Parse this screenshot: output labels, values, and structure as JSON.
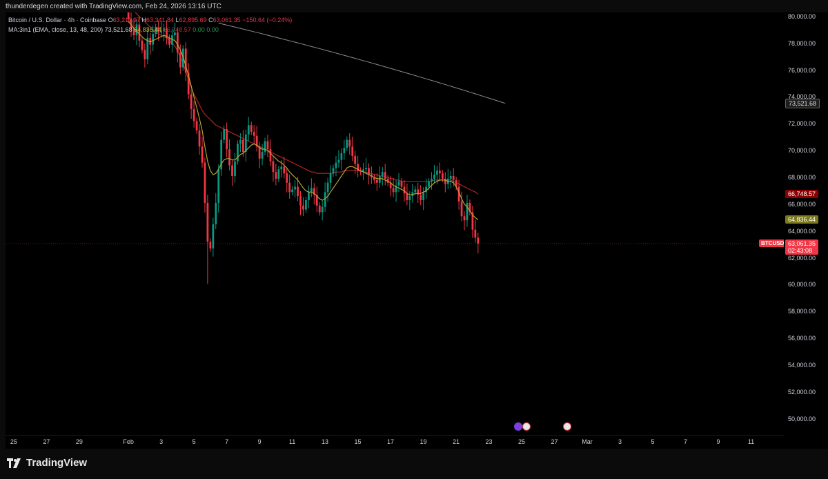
{
  "header": {
    "text": "thunderdegen created with TradingView.com, Feb 24, 2026 13:16 UTC"
  },
  "legend": {
    "symbol": "Bitcoin / U.S. Dollar · 4h · Coinbase",
    "open_label": "O",
    "open": "63,211.97",
    "high_label": "H",
    "high": "63,341.84",
    "low_label": "L",
    "low": "62,895.69",
    "close_label": "C",
    "close": "63,061.35",
    "change": "−150.64 (−0.24%)",
    "ma_name": "MA:3in1 (EMA, close, 13, 48, 200)",
    "ma_vals": [
      "73,521.68",
      "64,836.44",
      "66,748.57",
      "0.00",
      "0.00"
    ]
  },
  "price_badges": {
    "ema200": "73,521.68",
    "ema48": "66,748.57",
    "ema13": "64,836.44",
    "symbol": "BTCUSD",
    "last": "63,061.35",
    "countdown": "02:43:08"
  },
  "colors": {
    "up": "#089981",
    "down": "#f23645",
    "ema13": "#b5a532",
    "ema48": "#b22222",
    "ema200": "#8c8c8c",
    "last": "#f23645"
  },
  "footer": {
    "brand": "TradingView"
  },
  "chart_data": {
    "type": "candlestick",
    "interval": "4h",
    "y_ticks": [
      50000,
      52000,
      54000,
      56000,
      58000,
      60000,
      62000,
      64000,
      66000,
      68000,
      70000,
      72000,
      74000,
      76000,
      78000,
      80000
    ],
    "y_tick_labels": [
      "50,000.00",
      "52,000.00",
      "54,000.00",
      "56,000.00",
      "58,000.00",
      "60,000.00",
      "62,000.00",
      "64,000.00",
      "66,000.00",
      "68,000.00",
      "70,000.00",
      "72,000.00",
      "74,000.00",
      "76,000.00",
      "78,000.00",
      "80,000.00"
    ],
    "ylim": [
      48800,
      80300
    ],
    "x_labels": [
      "25",
      "27",
      "29",
      "Feb",
      "3",
      "5",
      "7",
      "9",
      "11",
      "13",
      "15",
      "17",
      "19",
      "21",
      "23",
      "25",
      "27",
      "Mar",
      "3",
      "5",
      "7",
      "9",
      "11"
    ],
    "x_label_days": [
      -7,
      -5,
      -3,
      0,
      2,
      4,
      6,
      8,
      10,
      12,
      14,
      16,
      18,
      20,
      22,
      24,
      26,
      28,
      30,
      32,
      34,
      36,
      38
    ],
    "xlim_days": [
      -7.5,
      40
    ],
    "candles_start_day": 0,
    "candles_step_day": 0.1667,
    "closes": [
      79800,
      79100,
      78600,
      79400,
      78200,
      77500,
      76800,
      78400,
      77900,
      78700,
      79200,
      78800,
      78900,
      79100,
      78400,
      77900,
      78600,
      78800,
      77300,
      76200,
      77600,
      75800,
      74200,
      73100,
      72200,
      71500,
      70300,
      69100,
      66100,
      63200,
      62700,
      64500,
      66100,
      68600,
      70800,
      71600,
      70100,
      68900,
      68100,
      69200,
      70500,
      70800,
      69900,
      71200,
      71900,
      71400,
      71100,
      70300,
      69400,
      69900,
      70700,
      70100,
      69200,
      68400,
      67900,
      68600,
      68800,
      68300,
      67600,
      66900,
      67100,
      67300,
      66600,
      65900,
      65600,
      66300,
      66900,
      67200,
      66700,
      65900,
      65400,
      65800,
      66900,
      67600,
      68300,
      68700,
      69100,
      69300,
      69800,
      70200,
      70800,
      70300,
      69600,
      69000,
      68500,
      68400,
      68600,
      68700,
      68200,
      68000,
      67800,
      67600,
      68100,
      68400,
      67900,
      67600,
      67200,
      66900,
      67400,
      67700,
      67300,
      66800,
      66300,
      66600,
      66900,
      67100,
      66700,
      66300,
      66900,
      67300,
      67700,
      67900,
      68200,
      68500,
      68300,
      67900,
      67500,
      67900,
      68100,
      67800,
      67300,
      66200,
      65100,
      64800,
      66100,
      65400,
      64100,
      63500,
      63061
    ],
    "ema13": [
      79600,
      79400,
      79100,
      78900,
      78700,
      78500,
      78300,
      78200,
      78100,
      78200,
      78300,
      78400,
      78500,
      78600,
      78500,
      78400,
      78300,
      78200,
      77900,
      77500,
      77000,
      76300,
      75600,
      74800,
      74000,
      73200,
      72400,
      71500,
      70300,
      69200,
      68500,
      68200,
      68300,
      68600,
      69000,
      69300,
      69400,
      69400,
      69300,
      69300,
      69500,
      69700,
      69800,
      70000,
      70200,
      70400,
      70500,
      70400,
      70200,
      70100,
      70100,
      70000,
      69800,
      69600,
      69400,
      69200,
      69100,
      68900,
      68700,
      68400,
      68200,
      68000,
      67800,
      67500,
      67200,
      67000,
      66900,
      66900,
      66800,
      66600,
      66400,
      66300,
      66400,
      66600,
      66900,
      67200,
      67500,
      67800,
      68100,
      68400,
      68700,
      68800,
      68800,
      68700,
      68600,
      68500,
      68400,
      68300,
      68200,
      68100,
      68000,
      67900,
      67900,
      67900,
      67800,
      67700,
      67600,
      67400,
      67300,
      67200,
      67100,
      67000,
      66800,
      66700,
      66700,
      66800,
      66800,
      66800,
      66900,
      67000,
      67200,
      67400,
      67600,
      67700,
      67800,
      67800,
      67800,
      67700,
      67700,
      67600,
      67300,
      66900,
      66400,
      66000,
      65800,
      65500,
      65200,
      65000,
      64836
    ],
    "ema48": [
      80800,
      80600,
      80400,
      80200,
      80000,
      79800,
      79600,
      79400,
      79200,
      79000,
      78800,
      78700,
      78600,
      78500,
      78400,
      78200,
      78000,
      77800,
      77400,
      77000,
      76500,
      75900,
      75300,
      74700,
      74200,
      73800,
      73400,
      73000,
      72700,
      72500,
      72300,
      72100,
      71900,
      71800,
      71700,
      71600,
      71500,
      71400,
      71300,
      71200,
      71100,
      71000,
      70900,
      70800,
      70700,
      70600,
      70500,
      70400,
      70300,
      70200,
      70100,
      70000,
      69900,
      69800,
      69700,
      69600,
      69500,
      69400,
      69300,
      69200,
      69100,
      69000,
      68900,
      68800,
      68700,
      68600,
      68500,
      68400,
      68400,
      68300,
      68300,
      68300,
      68300,
      68300,
      68300,
      68300,
      68400,
      68400,
      68400,
      68500,
      68500,
      68500,
      68500,
      68500,
      68500,
      68500,
      68400,
      68400,
      68300,
      68300,
      68200,
      68200,
      68100,
      68100,
      68000,
      68000,
      67900,
      67900,
      67800,
      67800,
      67700,
      67700,
      67700,
      67700,
      67700,
      67700,
      67700,
      67700,
      67700,
      67700,
      67700,
      67700,
      67800,
      67800,
      67800,
      67800,
      67800,
      67800,
      67800,
      67700,
      67600,
      67500,
      67400,
      67300,
      67200,
      67100,
      67000,
      66900,
      66748
    ],
    "ema200_range_days": [
      5.5,
      23.0
    ],
    "ema200_start": 79500,
    "ema200_end": 73521.68,
    "last_price": 63061.35
  }
}
